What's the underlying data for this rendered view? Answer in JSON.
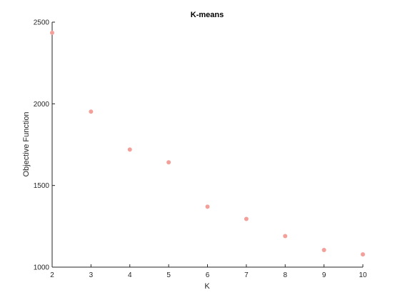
{
  "chart_data": {
    "type": "scatter",
    "title": "K-means",
    "xlabel": "K",
    "ylabel": "Objective Function",
    "xlim": [
      2,
      10
    ],
    "ylim": [
      1000,
      2500
    ],
    "xticks": [
      2,
      3,
      4,
      5,
      6,
      7,
      8,
      9,
      10
    ],
    "yticks": [
      1000,
      1500,
      2000,
      2500
    ],
    "grid": false,
    "marker_color": "#f4a09a",
    "series": [
      {
        "x": [
          2,
          3,
          4,
          5,
          6,
          7,
          8,
          9,
          10
        ],
        "y": [
          2435,
          1952,
          1720,
          1642,
          1370,
          1295,
          1190,
          1105,
          1078
        ]
      }
    ]
  }
}
